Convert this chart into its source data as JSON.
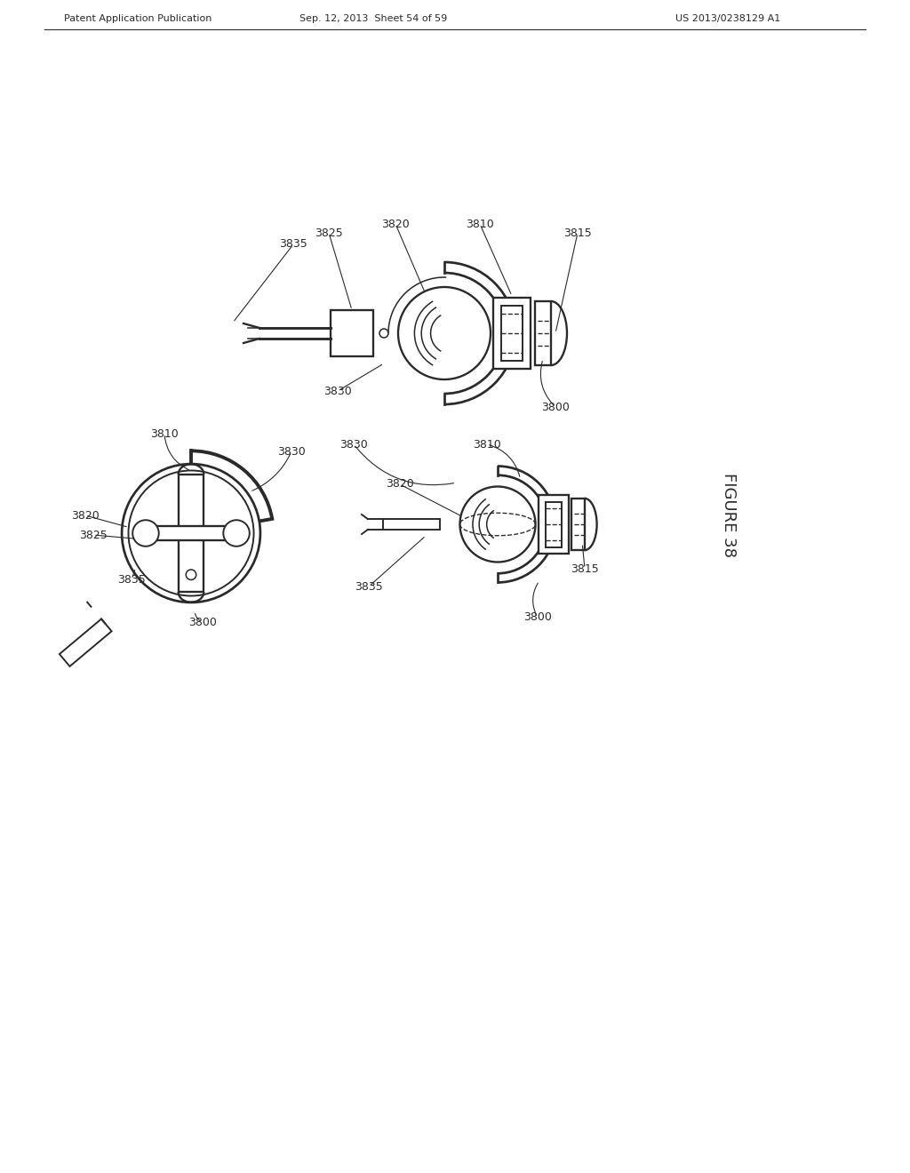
{
  "bg_color": "#ffffff",
  "line_color": "#2a2a2a",
  "header_left": "Patent Application Publication",
  "header_mid": "Sep. 12, 2013  Sheet 54 of 59",
  "header_right": "US 2013/0238129 A1",
  "figure_label": "FIGURE 38",
  "lw": 1.4
}
